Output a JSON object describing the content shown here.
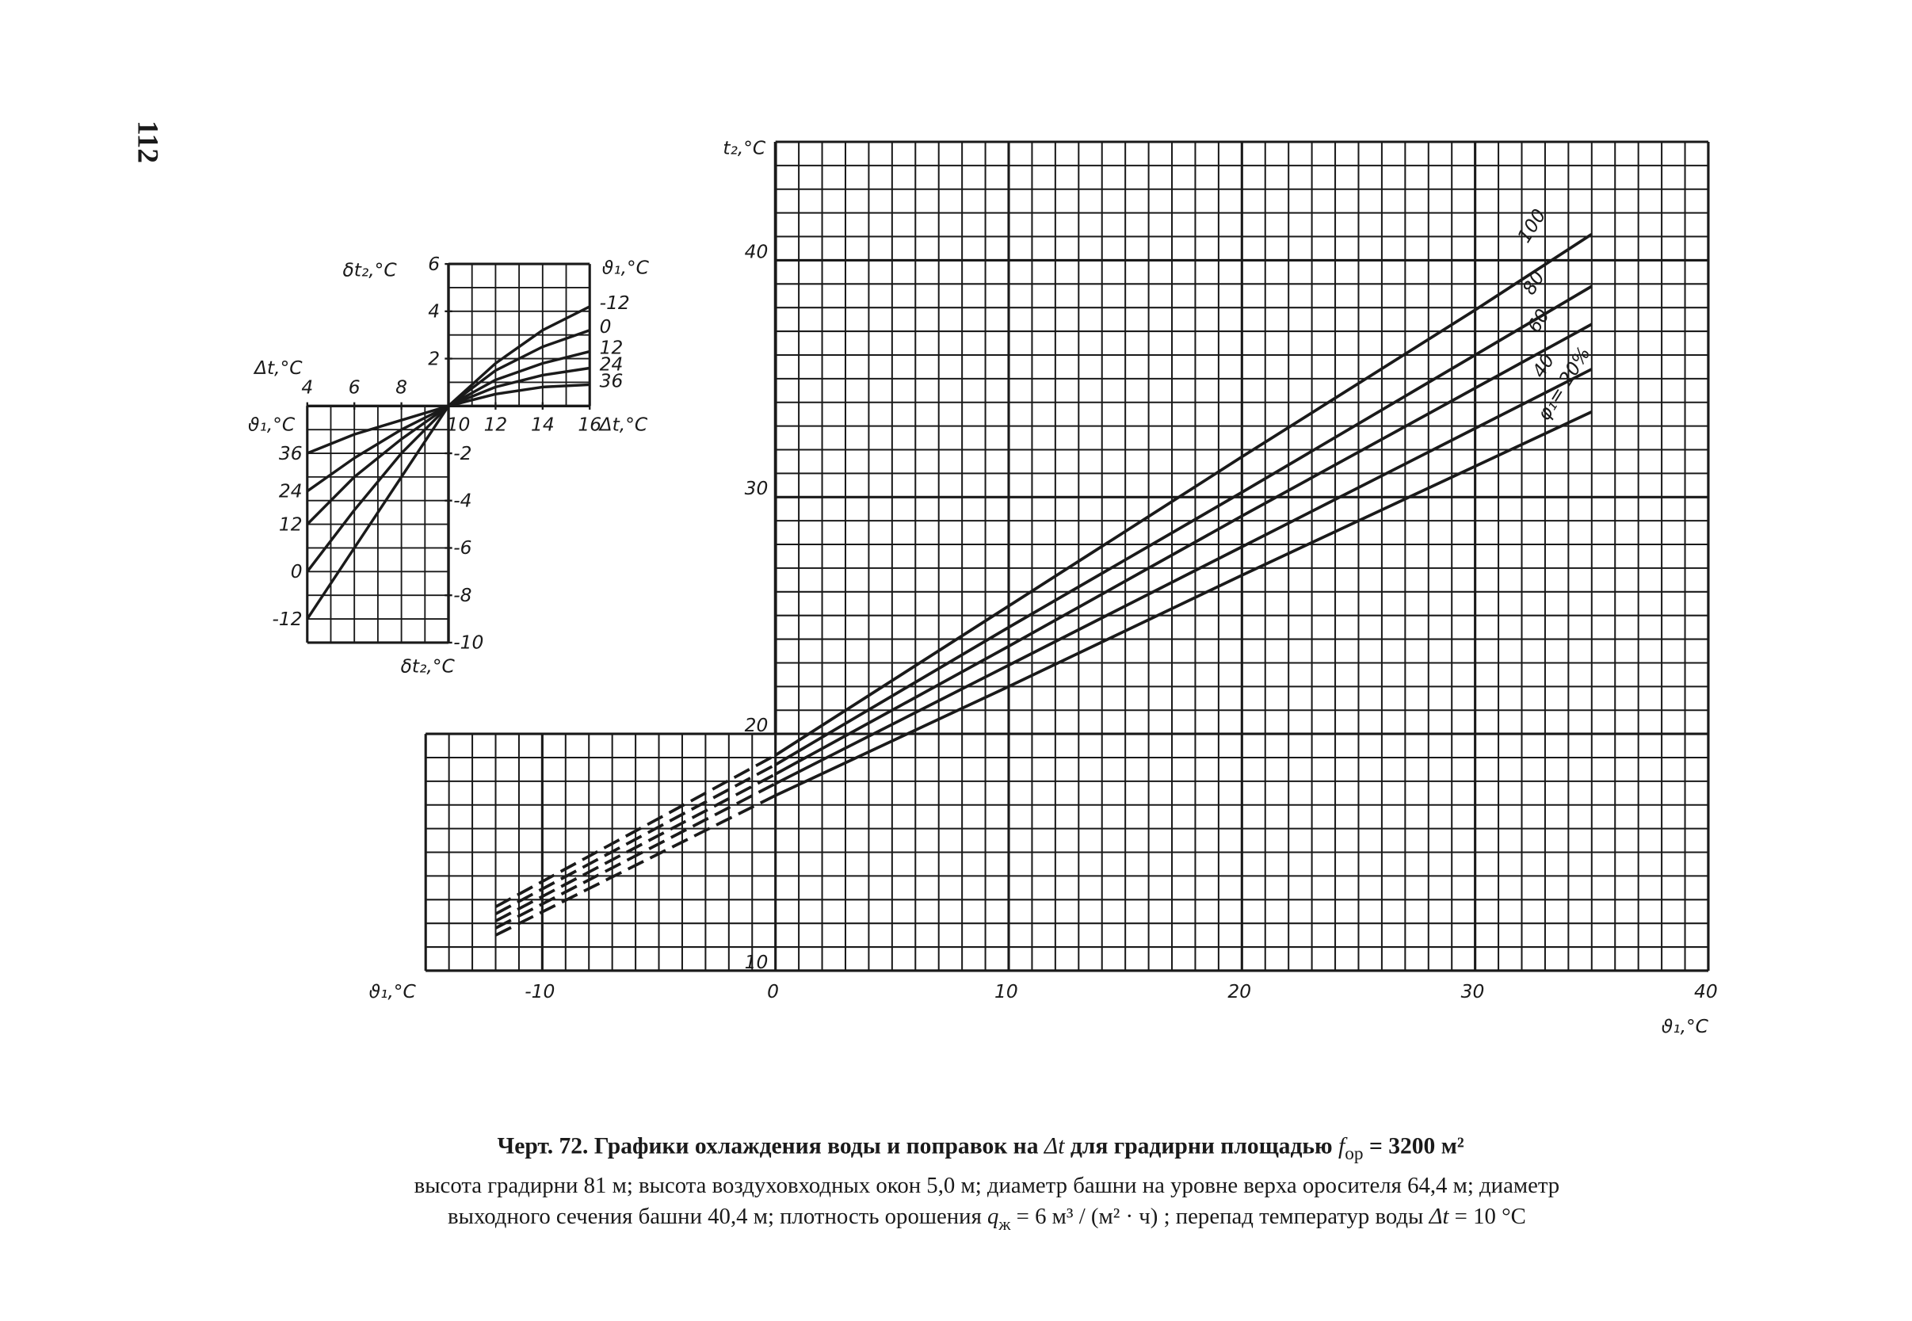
{
  "page_number": "112",
  "chart_data": [
    {
      "type": "line",
      "x_label": "ϑ₁,°C",
      "y_label": "t₂,°C",
      "color": "#1a1a1a",
      "x": [
        0,
        10,
        20,
        30,
        35
      ],
      "series": [
        {
          "name": "100",
          "color": "#1a1a1a",
          "values": [
            19.1,
            25.4,
            31.7,
            37.9,
            41.1
          ]
        },
        {
          "name": "80",
          "color": "#1a1a1a",
          "values": [
            18.7,
            24.5,
            30.2,
            36.0,
            38.9
          ]
        },
        {
          "name": "60",
          "color": "#1a1a1a",
          "values": [
            18.3,
            23.7,
            29.2,
            34.6,
            37.3
          ]
        },
        {
          "name": "40",
          "color": "#1a1a1a",
          "values": [
            17.9,
            22.9,
            27.9,
            32.9,
            35.4
          ]
        },
        {
          "name": "φ₁= 20%",
          "color": "#1a1a1a",
          "values": [
            17.4,
            22.0,
            26.7,
            31.3,
            33.6
          ]
        }
      ],
      "extension_x": [
        -12,
        0
      ],
      "extensions": [
        {
          "style": "dashed",
          "values": [
            12.7,
            19.1
          ]
        },
        {
          "style": "dashed",
          "values": [
            12.4,
            18.7
          ]
        },
        {
          "style": "dashed",
          "values": [
            12.1,
            18.3
          ]
        },
        {
          "style": "dashed",
          "values": [
            11.8,
            17.9
          ]
        },
        {
          "style": "dashed",
          "values": [
            11.5,
            17.4
          ]
        }
      ],
      "xlim": [
        -15,
        40
      ],
      "ylim": [
        10,
        45
      ],
      "xticks": [
        -10,
        0,
        10,
        20,
        30,
        40
      ],
      "yticks": [
        10,
        20,
        30,
        40
      ],
      "grid": true
    },
    {
      "type": "line",
      "x_label": "Δt,°C",
      "y_label": "δt₂,°C",
      "legend_title": "ϑ₁,°C",
      "color": "#1a1a1a",
      "x": [
        4,
        6,
        8,
        10,
        12,
        14,
        16
      ],
      "series": [
        {
          "name": "-12",
          "values": [
            -9.0,
            -6.0,
            -3.0,
            0,
            1.8,
            3.2,
            4.2
          ]
        },
        {
          "name": "0",
          "values": [
            -7.0,
            -4.4,
            -2.0,
            0,
            1.5,
            2.5,
            3.2
          ]
        },
        {
          "name": "12",
          "values": [
            -5.0,
            -3.0,
            -1.4,
            0,
            1.1,
            1.8,
            2.3
          ]
        },
        {
          "name": "24",
          "values": [
            -3.6,
            -2.2,
            -1.0,
            0,
            0.8,
            1.3,
            1.6
          ]
        },
        {
          "name": "36",
          "values": [
            -2.0,
            -1.2,
            -0.6,
            0,
            0.5,
            0.8,
            0.9
          ]
        }
      ],
      "xlim": [
        4,
        16
      ],
      "ylim": [
        -10,
        6
      ],
      "xticks": [
        4,
        6,
        8,
        10,
        12,
        14,
        16
      ],
      "yticks": [
        -10,
        -8,
        -6,
        -4,
        -2,
        2,
        4,
        6
      ],
      "grid": true
    }
  ],
  "caption": {
    "title": [
      "Черт. 72. Графики охлаждения воды и поправок на ",
      "Δt",
      " для градирни площадью ",
      "f",
      "ор",
      " = 3200 м²"
    ],
    "line1": "высота градирни 81 м; высота воздуховходных окон 5,0 м; диаметр башни на уровне верха оросителя 64,4 м; диаметр",
    "line2": [
      "выходного сечения башни 40,4 м; плотность орошения ",
      "q",
      "ж",
      " = 6 м³ / (м² · ч) ; перепад температур воды ",
      "Δt",
      " = 10 °C"
    ]
  }
}
